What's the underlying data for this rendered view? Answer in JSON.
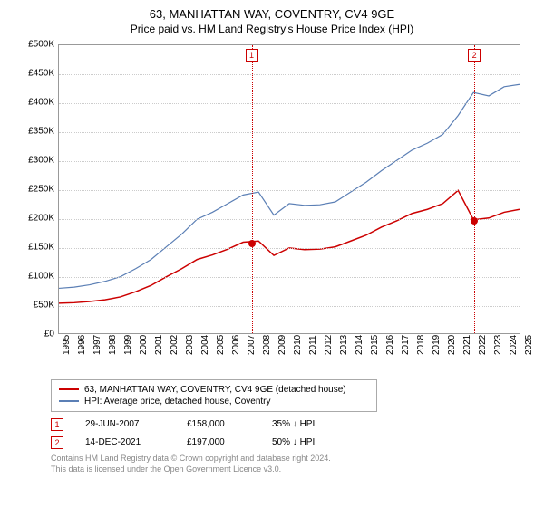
{
  "title": "63, MANHATTAN WAY, COVENTRY, CV4 9GE",
  "subtitle": "Price paid vs. HM Land Registry's House Price Index (HPI)",
  "chart": {
    "type": "line",
    "background_color": "#ffffff",
    "grid_color": "#cccccc",
    "border_color": "#999999",
    "title_fontsize": 13,
    "label_fontsize": 10,
    "x": {
      "years": [
        1995,
        1996,
        1997,
        1998,
        1999,
        2000,
        2001,
        2002,
        2003,
        2004,
        2005,
        2006,
        2007,
        2008,
        2009,
        2010,
        2011,
        2012,
        2013,
        2014,
        2015,
        2016,
        2017,
        2018,
        2019,
        2020,
        2021,
        2022,
        2023,
        2024,
        2025
      ],
      "min": 1995,
      "max": 2025
    },
    "y": {
      "ticks": [
        0,
        50000,
        100000,
        150000,
        200000,
        250000,
        300000,
        350000,
        400000,
        450000,
        500000
      ],
      "labels": [
        "£0",
        "£50K",
        "£100K",
        "£150K",
        "£200K",
        "£250K",
        "£300K",
        "£350K",
        "£400K",
        "£450K",
        "£500K"
      ],
      "min": 0,
      "max": 500000
    },
    "series": [
      {
        "name": "hpi",
        "label": "HPI: Average price, detached house, Coventry",
        "color": "#5b7fb5",
        "line_width": 1.2,
        "values_by_year": {
          "1995": 78000,
          "1996": 80000,
          "1997": 84000,
          "1998": 90000,
          "1999": 98000,
          "2000": 112000,
          "2001": 128000,
          "2002": 150000,
          "2003": 172000,
          "2004": 198000,
          "2005": 210000,
          "2006": 225000,
          "2007": 240000,
          "2008": 245000,
          "2009": 205000,
          "2010": 225000,
          "2011": 222000,
          "2012": 223000,
          "2013": 228000,
          "2014": 245000,
          "2015": 262000,
          "2016": 282000,
          "2017": 300000,
          "2018": 318000,
          "2019": 330000,
          "2020": 345000,
          "2021": 378000,
          "2022": 418000,
          "2023": 412000,
          "2024": 428000,
          "2025": 432000
        }
      },
      {
        "name": "price_paid",
        "label": "63, MANHATTAN WAY, COVENTRY, CV4 9GE (detached house)",
        "color": "#cc0000",
        "line_width": 1.5,
        "values_by_year": {
          "1995": 52000,
          "1996": 53000,
          "1997": 55000,
          "1998": 58000,
          "1999": 63000,
          "2000": 72000,
          "2001": 83000,
          "2002": 98000,
          "2003": 112000,
          "2004": 128000,
          "2005": 136000,
          "2006": 146000,
          "2007": 158000,
          "2008": 160000,
          "2009": 135000,
          "2010": 148000,
          "2011": 145000,
          "2012": 146000,
          "2013": 150000,
          "2014": 160000,
          "2015": 170000,
          "2016": 184000,
          "2017": 195000,
          "2018": 208000,
          "2019": 215000,
          "2020": 225000,
          "2021": 248000,
          "2022": 197000,
          "2023": 200000,
          "2024": 210000,
          "2025": 215000
        }
      }
    ],
    "vlines": [
      {
        "year": 2007.5,
        "color": "#cc0000",
        "box_label": "1"
      },
      {
        "year": 2021.95,
        "color": "#cc0000",
        "box_label": "2"
      }
    ],
    "sale_points": [
      {
        "year": 2007.5,
        "value": 158000,
        "color": "#cc0000"
      },
      {
        "year": 2021.95,
        "value": 197000,
        "color": "#cc0000"
      }
    ]
  },
  "legend": {
    "items": [
      {
        "color": "#cc0000",
        "label": "63, MANHATTAN WAY, COVENTRY, CV4 9GE (detached house)"
      },
      {
        "color": "#5b7fb5",
        "label": "HPI: Average price, detached house, Coventry"
      }
    ]
  },
  "sales": [
    {
      "n": "1",
      "box_color": "#cc0000",
      "date": "29-JUN-2007",
      "price": "£158,000",
      "diff": "35% ↓ HPI"
    },
    {
      "n": "2",
      "box_color": "#cc0000",
      "date": "14-DEC-2021",
      "price": "£197,000",
      "diff": "50% ↓ HPI"
    }
  ],
  "attribution": {
    "l1": "Contains HM Land Registry data © Crown copyright and database right 2024.",
    "l2": "This data is licensed under the Open Government Licence v3.0."
  }
}
